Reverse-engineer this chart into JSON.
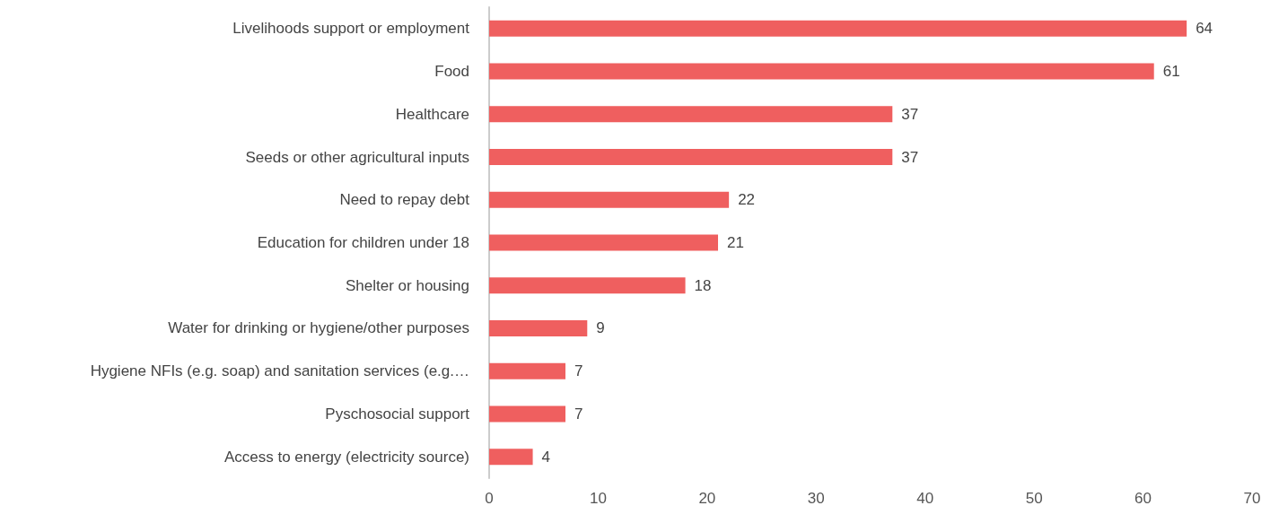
{
  "chart_data": {
    "type": "bar",
    "orientation": "horizontal",
    "categories": [
      "Livelihoods support or employment",
      "Food",
      "Healthcare",
      "Seeds or other agricultural inputs",
      "Need to repay debt",
      "Education for children under 18",
      "Shelter or housing",
      "Water for drinking or hygiene/other purposes",
      "Hygiene NFIs (e.g. soap) and sanitation services (e.g.…",
      "Pyschosocial support",
      "Access to energy (electricity source)"
    ],
    "values": [
      64,
      61,
      37,
      37,
      22,
      21,
      18,
      9,
      7,
      7,
      4
    ],
    "color": "#ef5f5f",
    "xlim": [
      0,
      70
    ],
    "xticks": [
      0,
      10,
      20,
      30,
      40,
      50,
      60,
      70
    ],
    "grid": false,
    "data_labels": true
  }
}
